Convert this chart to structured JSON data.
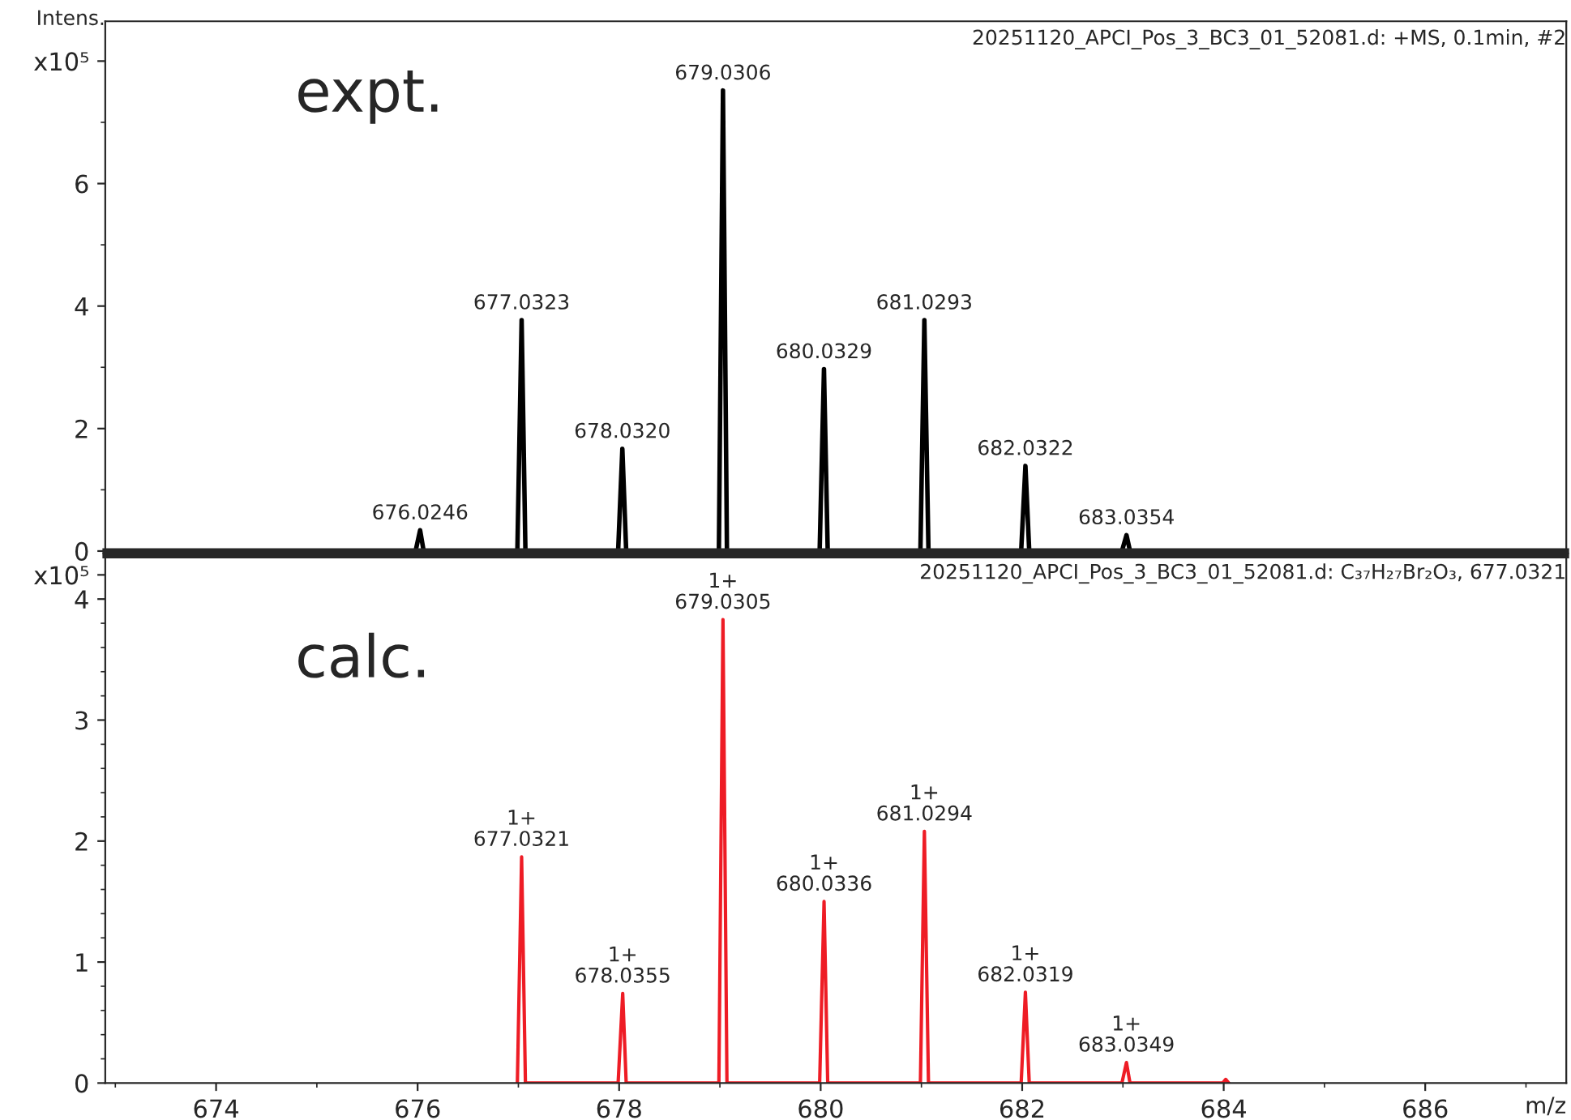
{
  "chart_data": [
    {
      "type": "line",
      "title": "20251120_APCI_Pos_3_BC3_01_52081.d: +MS, 0.1min, #2",
      "ylabel": "Intens.",
      "series": [
        {
          "color": "#000000",
          "x": [
            672.9,
            675.98,
            676.0246,
            676.06,
            676.99,
            677.0323,
            677.07,
            677.99,
            678.032,
            678.07,
            678.99,
            679.0306,
            679.07,
            679.99,
            680.0329,
            680.07,
            680.99,
            681.0293,
            681.07,
            681.99,
            682.0322,
            682.07,
            682.99,
            683.0354,
            683.07,
            687.4
          ],
          "values": [
            0,
            0,
            0.34,
            0,
            0,
            3.77,
            0,
            0,
            1.67,
            0,
            0,
            7.52,
            0,
            0,
            2.97,
            0,
            0,
            3.77,
            0,
            0,
            1.39,
            0,
            0,
            0.26,
            0,
            0
          ]
        }
      ],
      "xlim": [
        672.9,
        687.4
      ],
      "ylim": [
        0,
        8.65
      ],
      "yticks": [
        0,
        2,
        4,
        6,
        {
          "value": 8,
          "label": "x10⁵"
        }
      ],
      "tick_labels": "y",
      "annotations": [
        "expt.",
        {
          "text": "676.0246",
          "x": 676.0246,
          "y": 0.34
        },
        {
          "text": "677.0323",
          "x": 677.0323,
          "y": 3.77
        },
        {
          "text": "678.0320",
          "x": 678.032,
          "y": 1.67
        },
        {
          "text": "679.0306",
          "x": 679.0306,
          "y": 7.52
        },
        {
          "text": "680.0329",
          "x": 680.0329,
          "y": 2.97
        },
        {
          "text": "681.0293",
          "x": 681.0293,
          "y": 3.77
        },
        {
          "text": "682.0322",
          "x": 682.0322,
          "y": 1.39
        },
        {
          "text": "683.0354",
          "x": 683.0354,
          "y": 0.26
        }
      ]
    },
    {
      "type": "line",
      "title": "20251120_APCI_Pos_3_BC3_01_52081.d: C₃₇H₂₇Br₂O₃, 677.0321",
      "xlabel": "m/z",
      "series": [
        {
          "color": "#ee1c25",
          "x": [
            676.99,
            677.0321,
            677.07,
            677.99,
            678.0355,
            678.07,
            678.99,
            679.0305,
            679.07,
            679.99,
            680.0336,
            680.07,
            680.99,
            681.0294,
            681.07,
            681.99,
            682.0319,
            682.07,
            682.99,
            683.0349,
            683.07,
            683.99,
            684.02,
            684.05
          ],
          "values": [
            0,
            1.87,
            0,
            0,
            0.74,
            0,
            0,
            3.83,
            0,
            0,
            1.5,
            0,
            0,
            2.08,
            0,
            0,
            0.75,
            0,
            0,
            0.17,
            0,
            0,
            0.03,
            0
          ]
        }
      ],
      "xlim": [
        672.9,
        687.4
      ],
      "xticks": [
        674,
        676,
        678,
        680,
        682,
        684,
        686
      ],
      "ylim": [
        0,
        4.36
      ],
      "yticks": [
        0,
        1,
        2,
        3,
        4,
        {
          "value": 4.2,
          "label": "x10⁵"
        }
      ],
      "annotations": [
        "calc.",
        {
          "text": "1+\n677.0321",
          "x": 677.0321,
          "y": 1.87
        },
        {
          "text": "1+\n678.0355",
          "x": 678.0355,
          "y": 0.74
        },
        {
          "text": "1+\n679.0305",
          "x": 679.0305,
          "y": 3.83
        },
        {
          "text": "1+\n680.0336",
          "x": 680.0336,
          "y": 1.5
        },
        {
          "text": "1+\n681.0294",
          "x": 681.0294,
          "y": 2.08
        },
        {
          "text": "1+\n682.0319",
          "x": 682.0319,
          "y": 0.75
        },
        {
          "text": "1+\n683.0349",
          "x": 683.0349,
          "y": 0.17
        }
      ]
    }
  ]
}
